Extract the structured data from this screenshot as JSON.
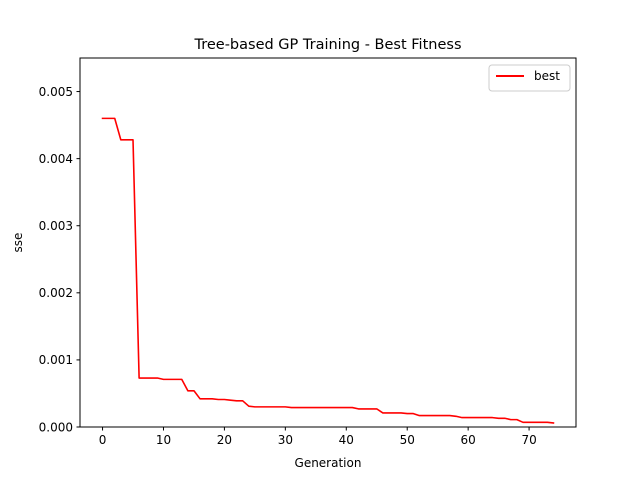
{
  "chart_data": {
    "type": "line",
    "title": "Tree-based GP Training - Best Fitness",
    "xlabel": "Generation",
    "ylabel": "sse",
    "xlim": [
      -3.7,
      77.7
    ],
    "ylim": [
      0,
      0.0055
    ],
    "xticks": [
      0,
      10,
      20,
      30,
      40,
      50,
      60,
      70
    ],
    "xtick_labels": [
      "0",
      "10",
      "20",
      "30",
      "40",
      "50",
      "60",
      "70"
    ],
    "yticks": [
      0,
      0.001,
      0.002,
      0.003,
      0.004,
      0.005
    ],
    "ytick_labels": [
      "0.000",
      "0.001",
      "0.002",
      "0.003",
      "0.004",
      "0.005"
    ],
    "grid": false,
    "legend_position": "top-right",
    "series": [
      {
        "name": "best",
        "color": "#ff0000",
        "x": [
          0,
          1,
          2,
          3,
          4,
          5,
          6,
          7,
          8,
          9,
          10,
          11,
          12,
          13,
          14,
          15,
          16,
          17,
          18,
          19,
          20,
          21,
          22,
          23,
          24,
          25,
          26,
          27,
          28,
          29,
          30,
          31,
          32,
          33,
          34,
          35,
          36,
          37,
          38,
          39,
          40,
          41,
          42,
          43,
          44,
          45,
          46,
          47,
          48,
          49,
          50,
          51,
          52,
          53,
          54,
          55,
          56,
          57,
          58,
          59,
          60,
          61,
          62,
          63,
          64,
          65,
          66,
          67,
          68,
          69,
          70,
          71,
          72,
          73,
          74
        ],
        "y": [
          0.0046,
          0.0046,
          0.0046,
          0.00428,
          0.00428,
          0.00428,
          0.00073,
          0.00073,
          0.00073,
          0.00073,
          0.00071,
          0.00071,
          0.00071,
          0.00071,
          0.00054,
          0.00054,
          0.00042,
          0.00042,
          0.00042,
          0.00041,
          0.00041,
          0.0004,
          0.00039,
          0.00039,
          0.00031,
          0.0003,
          0.0003,
          0.0003,
          0.0003,
          0.0003,
          0.0003,
          0.00029,
          0.00029,
          0.00029,
          0.00029,
          0.00029,
          0.00029,
          0.00029,
          0.00029,
          0.00029,
          0.00029,
          0.00029,
          0.00027,
          0.00027,
          0.00027,
          0.00027,
          0.00021,
          0.00021,
          0.00021,
          0.00021,
          0.0002,
          0.0002,
          0.00017,
          0.00017,
          0.00017,
          0.00017,
          0.00017,
          0.00017,
          0.00016,
          0.00014,
          0.00014,
          0.00014,
          0.00014,
          0.00014,
          0.00014,
          0.00013,
          0.00013,
          0.00011,
          0.00011,
          7e-05,
          7e-05,
          7e-05,
          7e-05,
          7e-05,
          6e-05
        ]
      }
    ]
  }
}
